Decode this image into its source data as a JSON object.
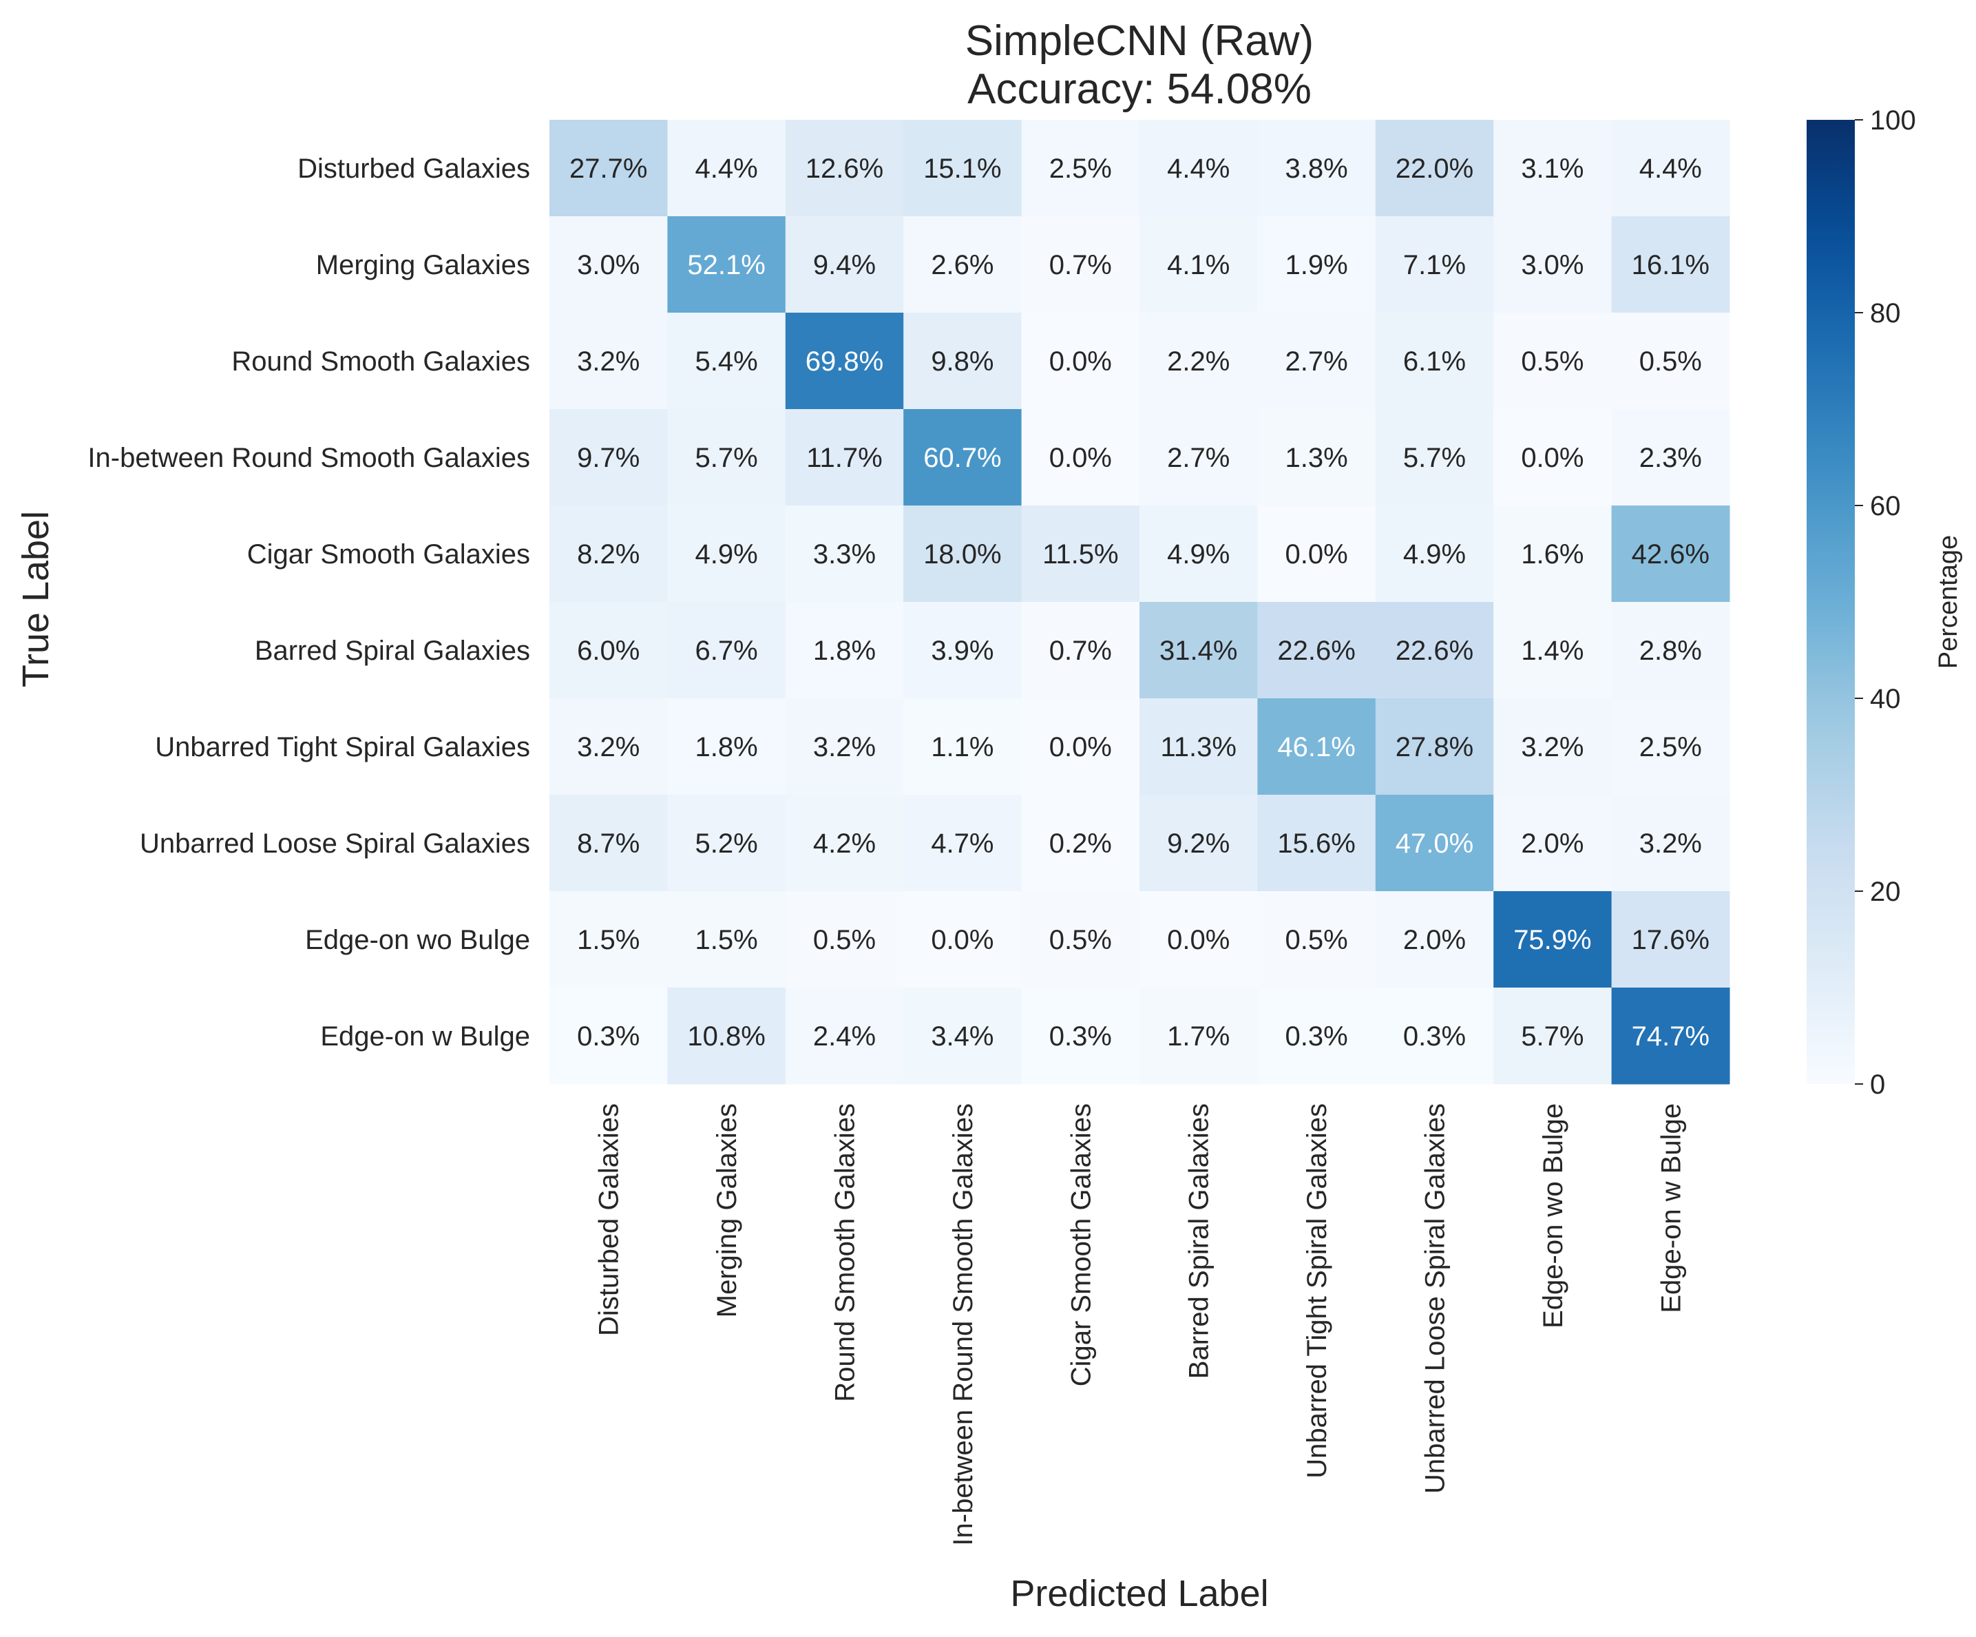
{
  "chart_data": {
    "type": "heatmap",
    "title": [
      "SimpleCNN (Raw)",
      "Accuracy: 54.08%"
    ],
    "xlabel": "Predicted Label",
    "ylabel": "True Label",
    "rows": [
      "Disturbed Galaxies",
      "Merging Galaxies",
      "Round Smooth Galaxies",
      "In-between Round Smooth Galaxies",
      "Cigar Smooth Galaxies",
      "Barred Spiral Galaxies",
      "Unbarred Tight Spiral Galaxies",
      "Unbarred Loose Spiral Galaxies",
      "Edge-on wo Bulge",
      "Edge-on w Bulge"
    ],
    "columns": [
      "Disturbed Galaxies",
      "Merging Galaxies",
      "Round Smooth Galaxies",
      "In-between Round Smooth Galaxies",
      "Cigar Smooth Galaxies",
      "Barred Spiral Galaxies",
      "Unbarred Tight Spiral Galaxies",
      "Unbarred Loose Spiral Galaxies",
      "Edge-on wo Bulge",
      "Edge-on w Bulge"
    ],
    "values": [
      [
        27.7,
        4.4,
        12.6,
        15.1,
        2.5,
        4.4,
        3.8,
        22.0,
        3.1,
        4.4
      ],
      [
        3.0,
        52.1,
        9.4,
        2.6,
        0.7,
        4.1,
        1.9,
        7.1,
        3.0,
        16.1
      ],
      [
        3.2,
        5.4,
        69.8,
        9.8,
        0.0,
        2.2,
        2.7,
        6.1,
        0.5,
        0.5
      ],
      [
        9.7,
        5.7,
        11.7,
        60.7,
        0.0,
        2.7,
        1.3,
        5.7,
        0.0,
        2.3
      ],
      [
        8.2,
        4.9,
        3.3,
        18.0,
        11.5,
        4.9,
        0.0,
        4.9,
        1.6,
        42.6
      ],
      [
        6.0,
        6.7,
        1.8,
        3.9,
        0.7,
        31.4,
        22.6,
        22.6,
        1.4,
        2.8
      ],
      [
        3.2,
        1.8,
        3.2,
        1.1,
        0.0,
        11.3,
        46.1,
        27.8,
        3.2,
        2.5
      ],
      [
        8.7,
        5.2,
        4.2,
        4.7,
        0.2,
        9.2,
        15.6,
        47.0,
        2.0,
        3.2
      ],
      [
        1.5,
        1.5,
        0.5,
        0.0,
        0.5,
        0.0,
        0.5,
        2.0,
        75.9,
        17.6
      ],
      [
        0.3,
        10.8,
        2.4,
        3.4,
        0.3,
        1.7,
        0.3,
        0.3,
        5.7,
        74.7
      ]
    ],
    "value_format": "%",
    "colormap": "Blues",
    "colorbar": {
      "label": "Percentage",
      "range": [
        0,
        100
      ],
      "ticks": [
        0,
        20,
        40,
        60,
        80,
        100
      ]
    },
    "grid": false
  }
}
